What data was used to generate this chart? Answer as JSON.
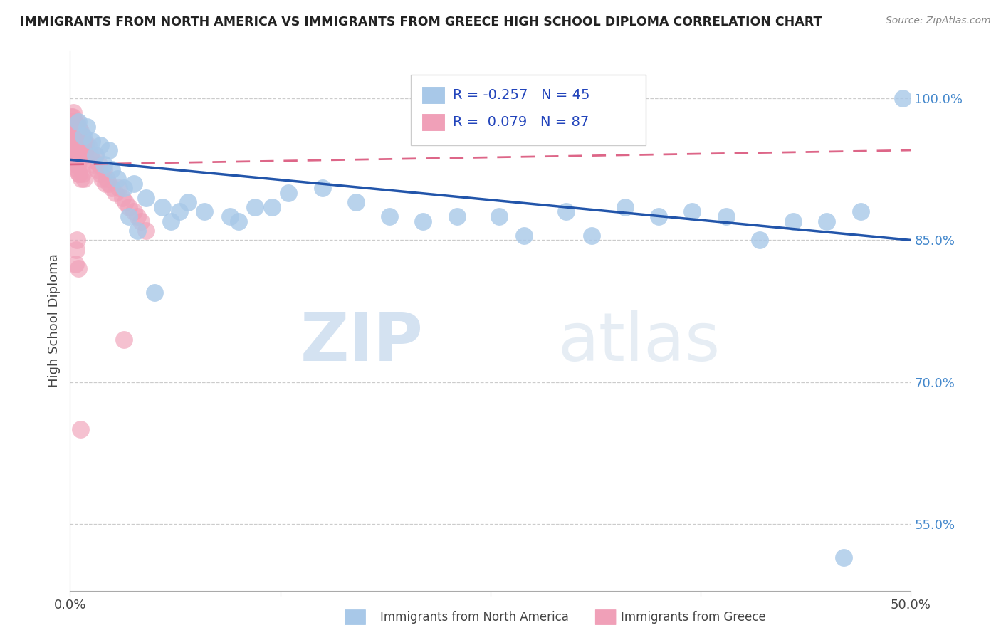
{
  "title": "IMMIGRANTS FROM NORTH AMERICA VS IMMIGRANTS FROM GREECE HIGH SCHOOL DIPLOMA CORRELATION CHART",
  "source": "Source: ZipAtlas.com",
  "ylabel": "High School Diploma",
  "xlim": [
    0.0,
    50.0
  ],
  "ylim": [
    48.0,
    105.0
  ],
  "yticks": [
    55.0,
    70.0,
    85.0,
    100.0
  ],
  "ytick_labels": [
    "55.0%",
    "70.0%",
    "85.0%",
    "100.0%"
  ],
  "blue_color": "#a8c8e8",
  "pink_color": "#f0a0b8",
  "blue_line_color": "#2255aa",
  "pink_line_color": "#dd6688",
  "legend_R_blue": "-0.257",
  "legend_N_blue": "45",
  "legend_R_pink": "0.079",
  "legend_N_pink": "87",
  "watermark_zip": "ZIP",
  "watermark_atlas": "atlas",
  "blue_x": [
    0.5,
    0.8,
    1.0,
    1.3,
    1.5,
    1.8,
    2.0,
    2.3,
    2.5,
    2.8,
    3.2,
    3.8,
    4.5,
    5.5,
    6.5,
    8.0,
    9.5,
    11.0,
    13.0,
    15.0,
    17.0,
    19.0,
    21.0,
    23.0,
    25.5,
    27.0,
    29.5,
    31.0,
    33.0,
    35.0,
    37.0,
    39.0,
    41.0,
    43.0,
    45.0,
    47.0,
    49.5,
    7.0,
    10.0,
    12.0,
    4.0,
    6.0,
    3.5,
    5.0,
    46.0
  ],
  "blue_y": [
    97.5,
    96.0,
    97.0,
    95.5,
    94.0,
    95.0,
    93.0,
    94.5,
    92.5,
    91.5,
    90.5,
    91.0,
    89.5,
    88.5,
    88.0,
    88.0,
    87.5,
    88.5,
    90.0,
    90.5,
    89.0,
    87.5,
    87.0,
    87.5,
    87.5,
    85.5,
    88.0,
    85.5,
    88.5,
    87.5,
    88.0,
    87.5,
    85.0,
    87.0,
    87.0,
    88.0,
    100.0,
    89.0,
    87.0,
    88.5,
    86.0,
    87.0,
    87.5,
    79.5,
    51.5
  ],
  "pink_x": [
    0.05,
    0.08,
    0.1,
    0.12,
    0.15,
    0.18,
    0.2,
    0.22,
    0.25,
    0.28,
    0.3,
    0.32,
    0.35,
    0.38,
    0.4,
    0.42,
    0.45,
    0.48,
    0.5,
    0.55,
    0.6,
    0.65,
    0.7,
    0.75,
    0.8,
    0.85,
    0.9,
    0.95,
    1.0,
    1.1,
    1.2,
    1.3,
    1.4,
    1.5,
    1.6,
    1.7,
    1.8,
    1.9,
    2.0,
    2.1,
    2.2,
    2.3,
    2.5,
    2.7,
    2.9,
    3.1,
    3.3,
    3.5,
    3.8,
    4.0,
    4.2,
    4.5,
    0.15,
    0.2,
    0.25,
    0.3,
    0.35,
    0.4,
    0.18,
    0.22,
    0.28,
    0.32,
    0.38,
    0.42,
    0.48,
    0.52,
    0.58,
    0.35,
    0.45,
    0.55,
    0.65,
    0.75,
    0.85,
    0.12,
    0.16,
    0.22,
    0.28,
    0.34,
    0.4,
    0.46,
    0.52,
    3.2,
    0.3,
    0.35,
    0.42,
    0.5,
    0.6
  ],
  "pink_y": [
    97.5,
    98.0,
    97.0,
    97.5,
    98.0,
    97.0,
    98.5,
    97.5,
    97.0,
    97.5,
    96.5,
    97.0,
    96.5,
    97.0,
    97.5,
    96.0,
    96.5,
    97.0,
    95.5,
    96.0,
    96.5,
    95.5,
    96.0,
    95.5,
    95.0,
    95.5,
    94.5,
    95.0,
    94.5,
    95.0,
    94.0,
    93.5,
    93.0,
    94.0,
    92.5,
    93.0,
    92.0,
    91.5,
    92.5,
    91.0,
    91.5,
    91.0,
    90.5,
    90.0,
    90.5,
    89.5,
    89.0,
    88.5,
    88.0,
    87.5,
    87.0,
    86.0,
    94.5,
    95.5,
    95.0,
    94.0,
    95.5,
    94.5,
    96.5,
    96.0,
    95.0,
    95.5,
    94.5,
    95.0,
    95.5,
    94.0,
    93.5,
    94.0,
    93.0,
    92.0,
    91.5,
    92.0,
    91.5,
    95.0,
    94.5,
    94.0,
    93.0,
    93.5,
    93.0,
    92.5,
    92.0,
    74.5,
    82.5,
    84.0,
    85.0,
    82.0,
    65.0
  ]
}
